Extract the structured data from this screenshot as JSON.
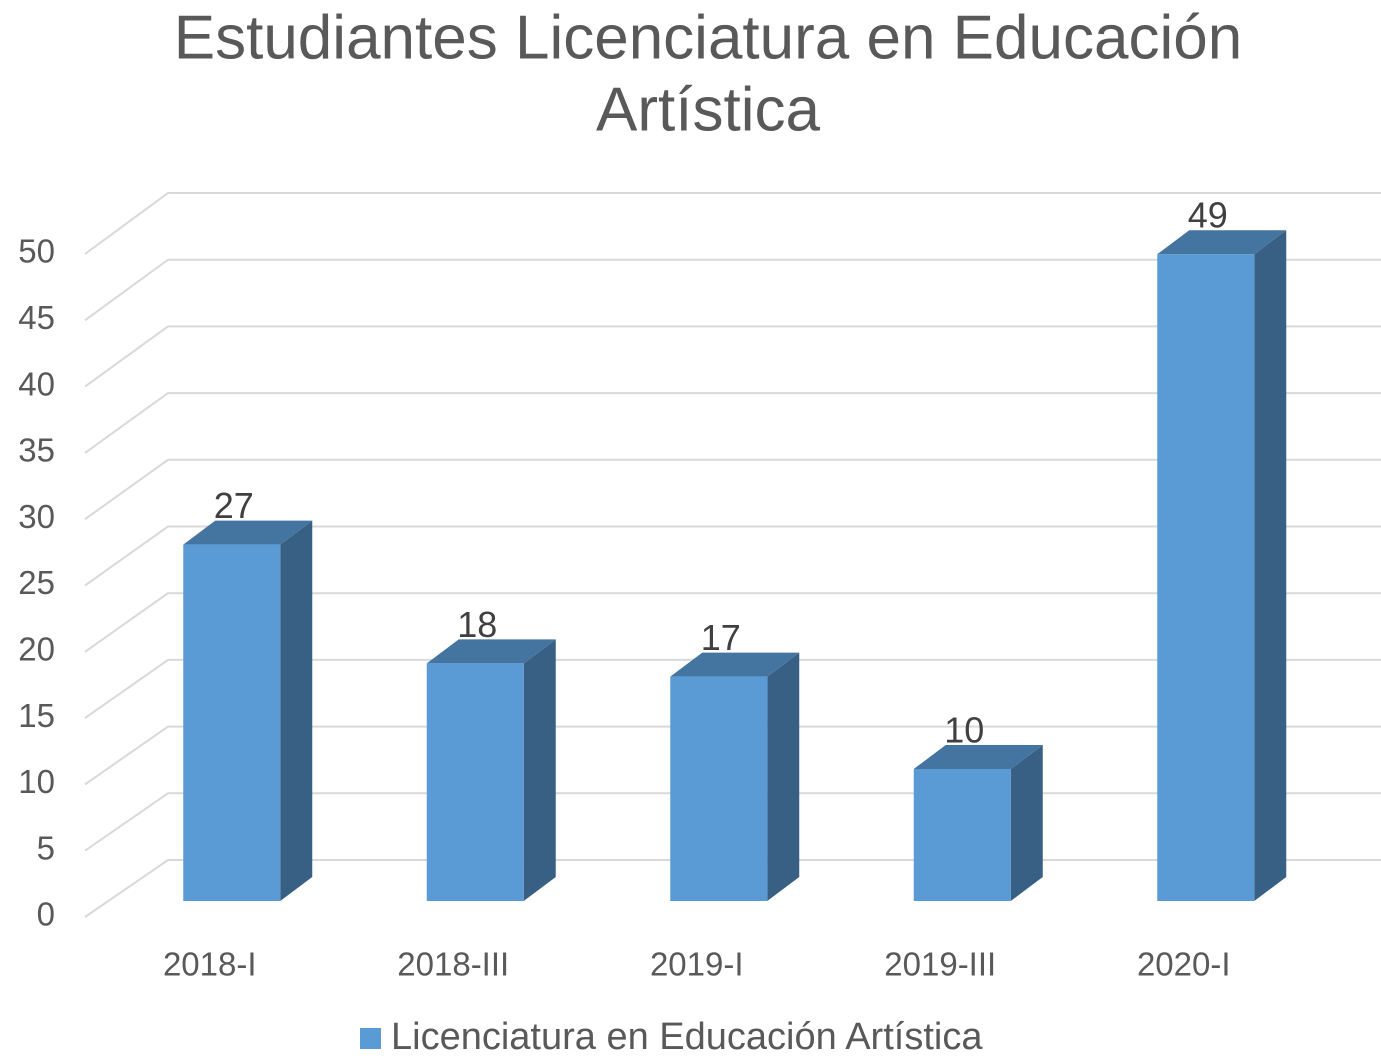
{
  "chart_data": {
    "type": "bar",
    "title": [
      "Estudiantes Licenciatura en Educación",
      "Artística"
    ],
    "categories": [
      "2018-I",
      "2018-III",
      "2019-I",
      "2019-III",
      "2020-I"
    ],
    "series": [
      {
        "name": "Licenciatura en Educación Artística",
        "color": "#5b9bd5",
        "values": [
          27,
          18,
          17,
          10,
          49
        ]
      }
    ],
    "ylim": [
      0,
      50
    ],
    "yticks": [
      0,
      5,
      10,
      15,
      20,
      25,
      30,
      35,
      40,
      45,
      50
    ],
    "grid": true,
    "legend": "bottom"
  }
}
